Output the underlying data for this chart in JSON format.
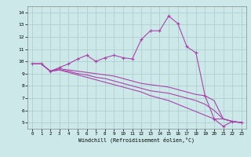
{
  "xlabel": "Windchill (Refroidissement éolien,°C)",
  "x": [
    0,
    1,
    2,
    3,
    4,
    5,
    6,
    7,
    8,
    9,
    10,
    11,
    12,
    13,
    14,
    15,
    16,
    17,
    18,
    19,
    20,
    21,
    22,
    23
  ],
  "line1": [
    9.8,
    9.8,
    9.2,
    9.5,
    9.8,
    10.2,
    10.5,
    10.0,
    10.3,
    10.5,
    10.3,
    10.2,
    11.8,
    12.5,
    12.5,
    13.7,
    13.1,
    11.2,
    10.7,
    7.2,
    5.3,
    4.7,
    5.1,
    5.0
  ],
  "line2": [
    9.8,
    9.8,
    9.2,
    9.4,
    9.3,
    9.2,
    9.1,
    9.0,
    8.9,
    8.8,
    8.6,
    8.4,
    8.2,
    8.1,
    8.0,
    7.9,
    7.7,
    7.5,
    7.3,
    7.2,
    6.8,
    5.3,
    5.1,
    5.0
  ],
  "line3": [
    9.8,
    9.8,
    9.2,
    9.3,
    9.2,
    9.0,
    8.9,
    8.7,
    8.6,
    8.4,
    8.2,
    8.0,
    7.8,
    7.6,
    7.5,
    7.4,
    7.2,
    7.0,
    6.8,
    6.5,
    6.0,
    5.3,
    5.1,
    5.0
  ],
  "line4": [
    9.8,
    9.8,
    9.2,
    9.3,
    9.1,
    8.9,
    8.7,
    8.5,
    8.3,
    8.1,
    7.9,
    7.7,
    7.5,
    7.2,
    7.0,
    6.8,
    6.5,
    6.2,
    5.9,
    5.6,
    5.3,
    5.3,
    5.1,
    5.0
  ],
  "line_color": "#aa44aa",
  "bg_color": "#cce8e8",
  "grid_color": "#aacccc",
  "ylim": [
    4.5,
    14.5
  ],
  "xlim": [
    -0.5,
    23.5
  ],
  "yticks": [
    5,
    6,
    7,
    8,
    9,
    10,
    11,
    12,
    13,
    14
  ],
  "xticks": [
    0,
    1,
    2,
    3,
    4,
    5,
    6,
    7,
    8,
    9,
    10,
    11,
    12,
    13,
    14,
    15,
    16,
    17,
    18,
    19,
    20,
    21,
    22,
    23
  ]
}
